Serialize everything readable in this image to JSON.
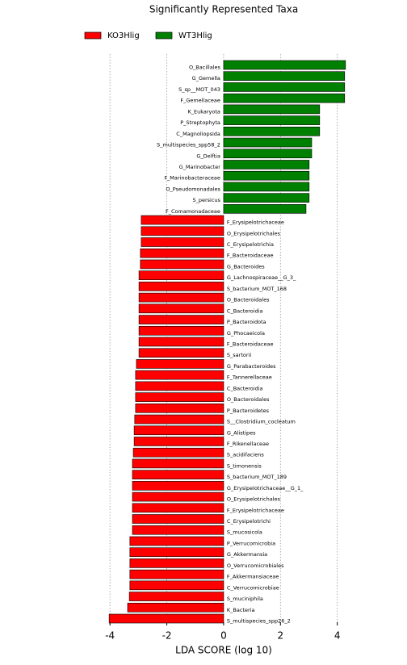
{
  "chart_data": {
    "type": "bar",
    "orientation": "horizontal",
    "title": "Significantly Represented Taxa",
    "xlabel": "LDA SCORE (log 10)",
    "categories": [
      "O_Bacillales",
      "G_Gemella",
      "S_sp__MOT_043",
      "F_Gemellaceae",
      "K_Eukaryota",
      "P_Streptophyta",
      "C_Magnoliopsida",
      "S_multispecies_spp58_2",
      "G_Delftia",
      "G_Marinobacter",
      "F_Marinobacteraceae",
      "O_Pseudomonadales",
      "S_persicus",
      "F_Comamonadaceae",
      "F_Erysipelotrichaceae",
      "O_Erysipelotrichales",
      "C_Erysipelotrichia",
      "F_Bacteroidaceae",
      "G_Bacteroides",
      "G_Lachnospiraceae__G_3_",
      "S_bacterium_MOT_168",
      "O_Bacteroidales",
      "C_Bacteroidia",
      "P_Bacteroidota",
      "G_Phocaeicola",
      "F_Bacteroidaceae",
      "S_sartorii",
      "G_Parabacteroides",
      "F_Tannerellaceae",
      "C_Bacteroidia",
      "O_Bacteroidales",
      "P_Bacteroidetes",
      "S__Clostridium_cocleatum",
      "G_Alistipes",
      "F_Rikenellaceae",
      "S_acidifaciens",
      "S_timonensis",
      "S_bacterium_MOT_189",
      "G_Erysipelotrichaceae__G_1_",
      "O_Erysipelotrichales",
      "F_Erysipelotrichaceae",
      "C_Erysipelotrichi",
      "S_mucosicola",
      "P_Verrucomicrobia",
      "G_Akkermansia",
      "O_Verrucomicrobiales",
      "F_Akkermansiaceae",
      "C_Verrucomicrobiae",
      "S_muciniphila",
      "K_Bacteria",
      "S_multispecies_spp26_2"
    ],
    "series": [
      {
        "name": "KO3Hlig",
        "color": "#ff0000",
        "values": [
          null,
          null,
          null,
          null,
          null,
          null,
          null,
          null,
          null,
          null,
          null,
          null,
          null,
          null,
          -2.9,
          -2.9,
          -2.9,
          -2.93,
          -2.93,
          -2.98,
          -2.98,
          -2.98,
          -2.98,
          -2.98,
          -2.98,
          -2.98,
          -2.98,
          -3.07,
          -3.1,
          -3.1,
          -3.1,
          -3.1,
          -3.13,
          -3.15,
          -3.15,
          -3.18,
          -3.21,
          -3.21,
          -3.21,
          -3.21,
          -3.21,
          -3.21,
          -3.21,
          -3.3,
          -3.3,
          -3.3,
          -3.3,
          -3.3,
          -3.32,
          -3.38,
          -4.03
        ]
      },
      {
        "name": "WT3Hlig",
        "color": "#008000",
        "values": [
          4.29,
          4.26,
          4.26,
          4.26,
          3.38,
          3.38,
          3.38,
          3.1,
          3.1,
          3.01,
          3.01,
          3.01,
          3.01,
          2.9,
          null,
          null,
          null,
          null,
          null,
          null,
          null,
          null,
          null,
          null,
          null,
          null,
          null,
          null,
          null,
          null,
          null,
          null,
          null,
          null,
          null,
          null,
          null,
          null,
          null,
          null,
          null,
          null,
          null,
          null,
          null,
          null,
          null,
          null,
          null,
          null,
          null
        ]
      }
    ],
    "xlim": [
      -4.25,
      4.55
    ],
    "xticks": [
      -4,
      -2,
      0,
      2,
      4
    ],
    "grid": true
  }
}
